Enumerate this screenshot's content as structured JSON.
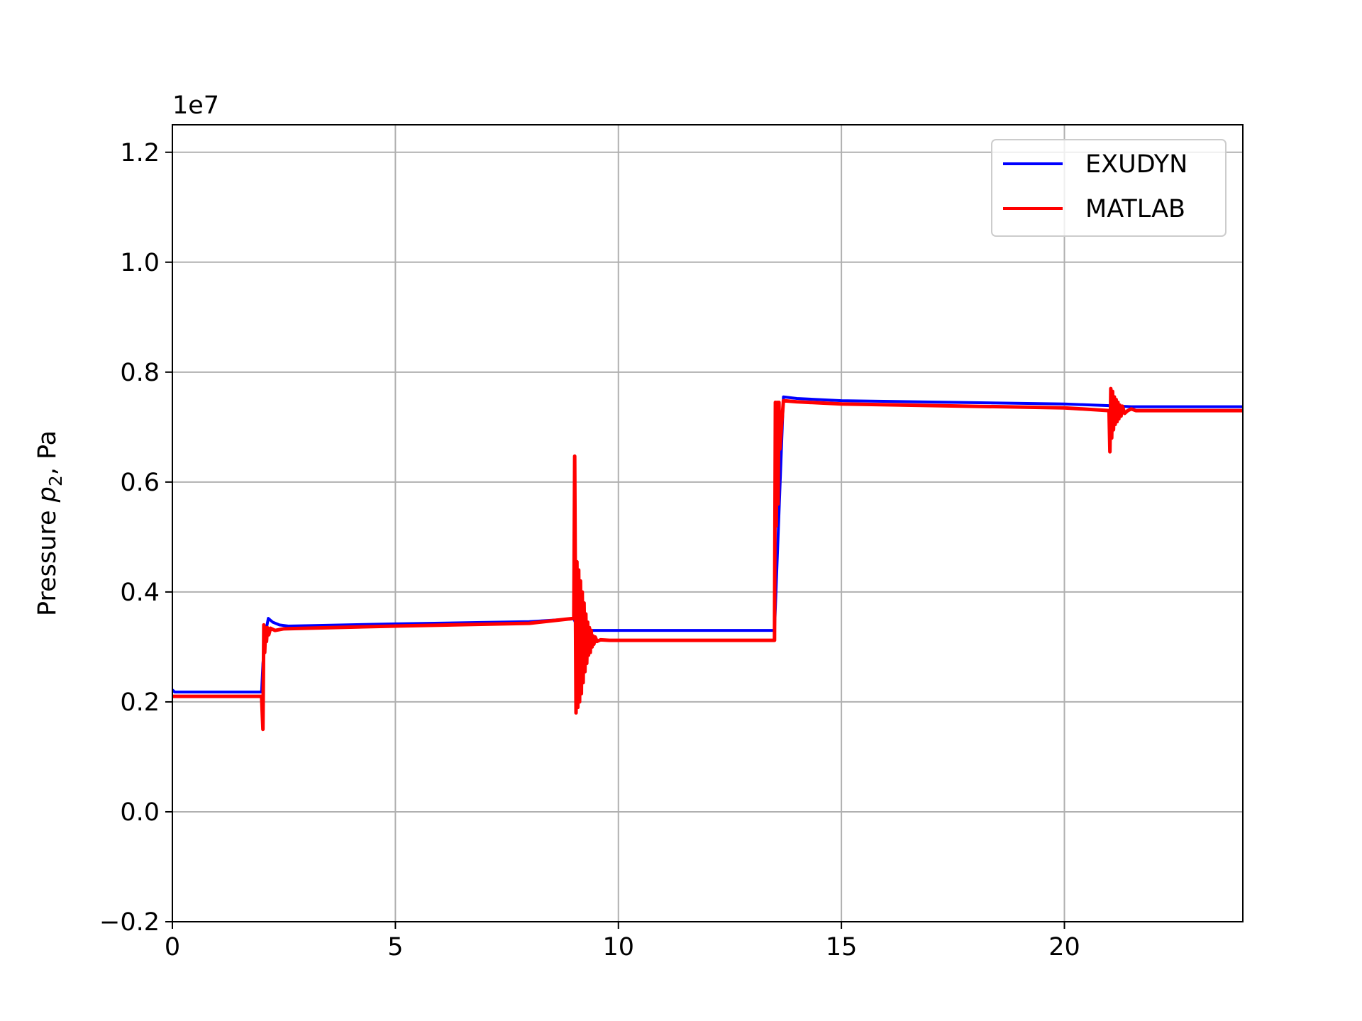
{
  "chart_data": {
    "type": "line",
    "ylabel_text": "Pressure ",
    "ylabel_var": "p",
    "ylabel_sub": "2",
    "ylabel_unit": ", Pa",
    "offset_text": "1e7",
    "xlim": [
      0,
      24
    ],
    "ylim": [
      -0.2,
      1.25
    ],
    "x_ticks": [
      0,
      5,
      10,
      15,
      20
    ],
    "x_tick_labels": [
      "0",
      "5",
      "10",
      "15",
      "20"
    ],
    "y_ticks": [
      -0.2,
      0.0,
      0.2,
      0.4,
      0.6,
      0.8,
      1.0,
      1.2
    ],
    "y_tick_labels": [
      "−0.2",
      "0.0",
      "0.2",
      "0.4",
      "0.6",
      "0.8",
      "1.0",
      "1.2"
    ],
    "grid": true,
    "legend_position": "top-right",
    "series": [
      {
        "name": "EXUDYN",
        "color": "#0000ff",
        "x": [
          0,
          0.05,
          2.0,
          2.0,
          2.03,
          2.1,
          2.15,
          2.25,
          2.4,
          2.6,
          5,
          8,
          9.0,
          9.05,
          9.15,
          9.3,
          9.5,
          13.5,
          13.5,
          13.7,
          14,
          15,
          20,
          21,
          21.5,
          24
        ],
        "y": [
          0.222,
          0.218,
          0.218,
          0.218,
          0.27,
          0.33,
          0.352,
          0.345,
          0.34,
          0.338,
          0.342,
          0.346,
          0.351,
          0.342,
          0.335,
          0.33,
          0.33,
          0.33,
          0.33,
          0.755,
          0.752,
          0.748,
          0.742,
          0.739,
          0.737,
          0.737
        ]
      },
      {
        "name": "MATLAB",
        "color": "#ff0000",
        "x": [
          0,
          2.0,
          2.0,
          2.03,
          2.05,
          2.07,
          2.09,
          2.11,
          2.13,
          2.16,
          2.2,
          2.3,
          2.5,
          5,
          8,
          9.0,
          9.02,
          9.05,
          9.07,
          9.09,
          9.11,
          9.13,
          9.15,
          9.17,
          9.19,
          9.21,
          9.23,
          9.25,
          9.27,
          9.29,
          9.31,
          9.33,
          9.35,
          9.37,
          9.39,
          9.41,
          9.43,
          9.45,
          9.48,
          9.52,
          9.6,
          9.8,
          10.0,
          13.5,
          13.5,
          13.52,
          13.54,
          13.56,
          13.58,
          13.6,
          13.62,
          13.7,
          14,
          15,
          20,
          21.0,
          21.0,
          21.02,
          21.04,
          21.06,
          21.08,
          21.1,
          21.12,
          21.14,
          21.16,
          21.18,
          21.2,
          21.22,
          21.24,
          21.27,
          21.3,
          21.35,
          21.42,
          21.5,
          21.6,
          24
        ],
        "y": [
          0.21,
          0.21,
          0.21,
          0.15,
          0.34,
          0.29,
          0.335,
          0.31,
          0.335,
          0.322,
          0.334,
          0.33,
          0.333,
          0.338,
          0.343,
          0.352,
          0.647,
          0.18,
          0.455,
          0.19,
          0.44,
          0.2,
          0.42,
          0.215,
          0.4,
          0.235,
          0.38,
          0.255,
          0.36,
          0.27,
          0.345,
          0.285,
          0.335,
          0.29,
          0.33,
          0.3,
          0.32,
          0.305,
          0.318,
          0.31,
          0.313,
          0.312,
          0.312,
          0.312,
          0.312,
          0.745,
          0.52,
          0.745,
          0.56,
          0.745,
          0.66,
          0.748,
          0.746,
          0.742,
          0.735,
          0.73,
          0.73,
          0.655,
          0.77,
          0.68,
          0.765,
          0.695,
          0.755,
          0.705,
          0.75,
          0.71,
          0.745,
          0.715,
          0.74,
          0.72,
          0.738,
          0.725,
          0.73,
          0.733,
          0.73,
          0.73
        ]
      }
    ]
  }
}
